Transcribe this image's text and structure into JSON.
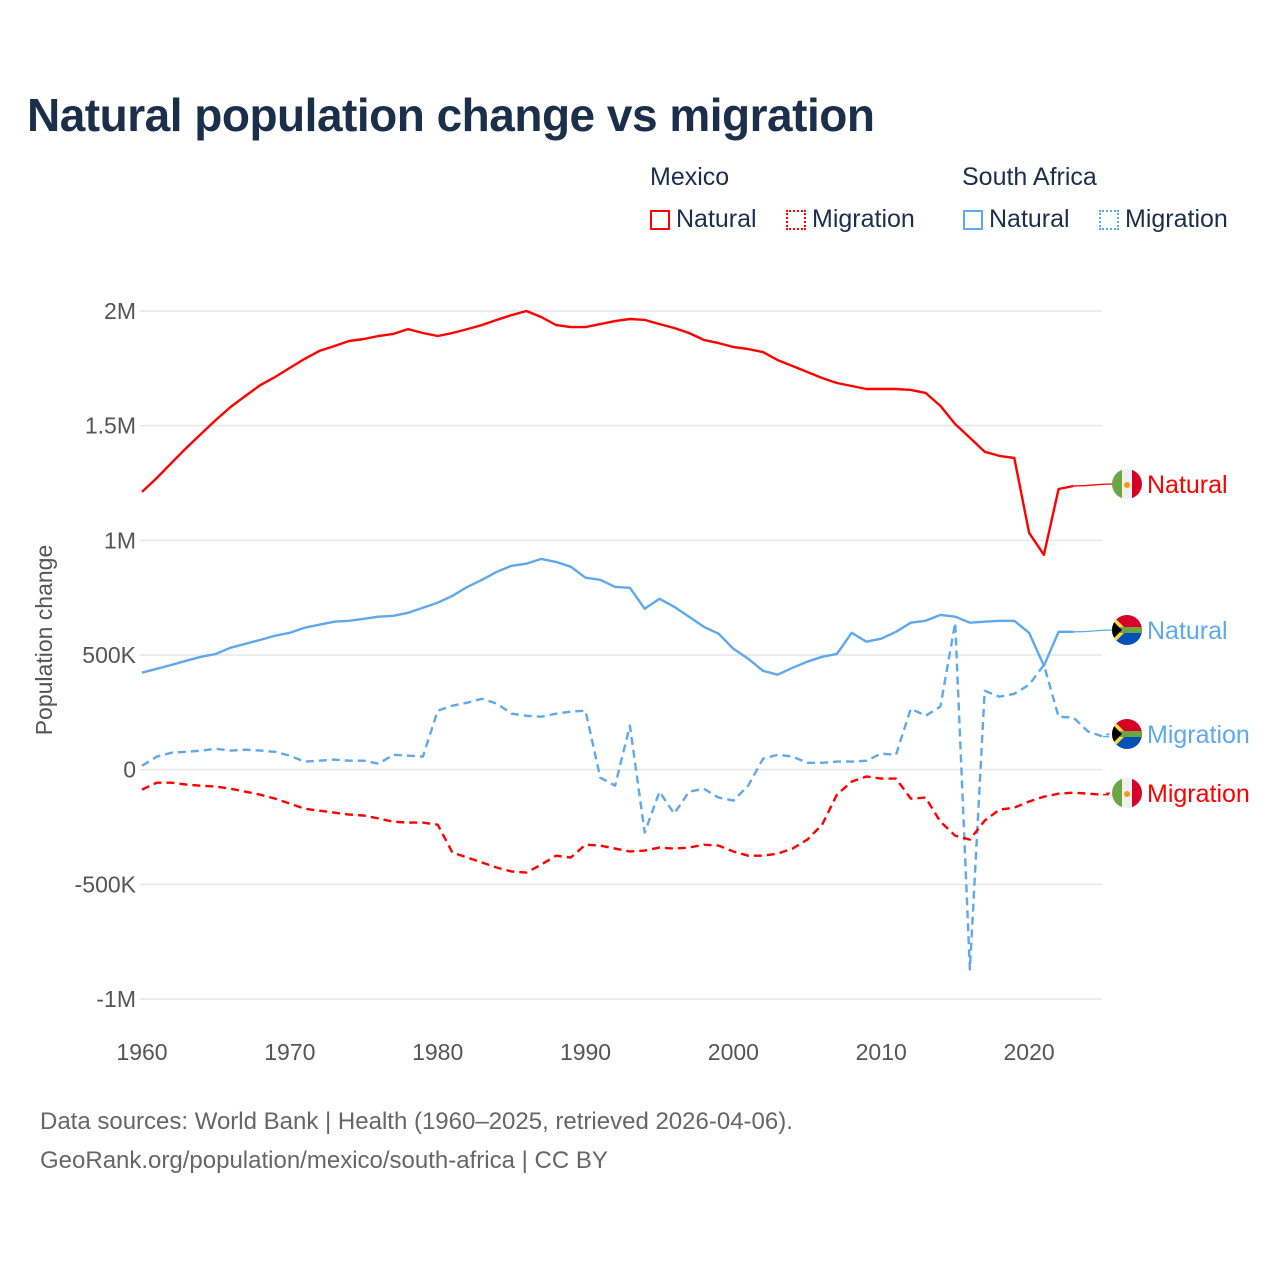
{
  "chart_data": {
    "type": "line",
    "title": "Natural population change vs migration",
    "xlabel": "",
    "ylabel": "Population change",
    "xlim": [
      1960,
      2025
    ],
    "ylim": [
      -1000000,
      2000000
    ],
    "grid": true,
    "legend_placement": "top-right",
    "x_ticks": [
      1960,
      1970,
      1980,
      1990,
      2000,
      2010,
      2020
    ],
    "x_tick_labels": [
      "1960",
      "1970",
      "1980",
      "1990",
      "2000",
      "2010",
      "2020"
    ],
    "y_ticks": [
      2000000,
      1500000,
      1000000,
      500000,
      0,
      -500000,
      -1000000
    ],
    "y_tick_labels": [
      "2M",
      "1.5M",
      "1M",
      "500K",
      "0",
      "-500K",
      "-1M"
    ],
    "legend_groups": [
      {
        "name": "Mexico",
        "items": [
          "Natural",
          "Migration"
        ]
      },
      {
        "name": "South Africa",
        "items": [
          "Natural",
          "Migration"
        ]
      }
    ],
    "series": [
      {
        "name": "Mexico Natural",
        "country": "Mexico",
        "label": "Natural",
        "color": "#ff0000",
        "dash": false,
        "start_year": 1960,
        "values": [
          1211000,
          1272000,
          1338000,
          1403000,
          1464000,
          1525000,
          1582000,
          1630000,
          1677000,
          1712000,
          1752000,
          1791000,
          1826000,
          1847000,
          1869000,
          1878000,
          1891000,
          1900000,
          1921000,
          1904000,
          1891000,
          1904000,
          1921000,
          1939000,
          1961000,
          1982000,
          2000000,
          1974000,
          1939000,
          1930000,
          1930000,
          1943000,
          1956000,
          1965000,
          1961000,
          1943000,
          1926000,
          1904000,
          1874000,
          1860000,
          1843000,
          1834000,
          1821000,
          1786000,
          1760000,
          1734000,
          1708000,
          1686000,
          1673000,
          1660000,
          1660000,
          1660000,
          1656000,
          1643000,
          1586000,
          1507000,
          1447000,
          1386000,
          1368000,
          1359000,
          1033000,
          937000,
          1224000,
          1237000
        ]
      },
      {
        "name": "South Africa Natural",
        "country": "South Africa",
        "label": "Natural",
        "color": "#5ea8ec",
        "dash": false,
        "start_year": 1960,
        "values": [
          423000,
          440000,
          457000,
          475000,
          492000,
          505000,
          532000,
          549000,
          566000,
          584000,
          597000,
          619000,
          632000,
          645000,
          649000,
          658000,
          667000,
          671000,
          684000,
          706000,
          728000,
          758000,
          797000,
          828000,
          863000,
          889000,
          898000,
          919000,
          906000,
          885000,
          837000,
          828000,
          797000,
          793000,
          702000,
          745000,
          710000,
          667000,
          623000,
          593000,
          527000,
          484000,
          431000,
          414000,
          444000,
          471000,
          492000,
          505000,
          597000,
          558000,
          571000,
          601000,
          641000,
          649000,
          675000,
          667000,
          641000,
          645000,
          649000,
          649000,
          597000,
          453000,
          601000,
          601000
        ]
      },
      {
        "name": "South Africa Migration",
        "country": "South Africa",
        "label": "Migration",
        "color": "#5ea8ec",
        "dash": true,
        "start_year": 1960,
        "values": [
          17000,
          57000,
          74000,
          78000,
          83000,
          91000,
          83000,
          87000,
          83000,
          78000,
          61000,
          35000,
          39000,
          44000,
          39000,
          39000,
          26000,
          65000,
          61000,
          57000,
          257000,
          279000,
          292000,
          309000,
          288000,
          244000,
          235000,
          231000,
          244000,
          253000,
          257000,
          -35000,
          -70000,
          192000,
          -274000,
          -96000,
          -192000,
          -96000,
          -83000,
          -122000,
          -135000,
          -70000,
          48000,
          65000,
          57000,
          30000,
          30000,
          35000,
          35000,
          39000,
          70000,
          65000,
          266000,
          235000,
          275000,
          641000,
          -871000,
          344000,
          318000,
          331000,
          370000,
          457000,
          231000,
          227000,
          166000,
          144000
        ]
      },
      {
        "name": "Mexico Migration",
        "country": "Mexico",
        "label": "Migration",
        "color": "#ff0000",
        "dash": true,
        "start_year": 1960,
        "values": [
          -87000,
          -57000,
          -57000,
          -65000,
          -70000,
          -74000,
          -83000,
          -96000,
          -109000,
          -126000,
          -148000,
          -170000,
          -179000,
          -187000,
          -196000,
          -200000,
          -213000,
          -227000,
          -231000,
          -231000,
          -240000,
          -362000,
          -383000,
          -405000,
          -427000,
          -444000,
          -449000,
          -414000,
          -375000,
          -383000,
          -327000,
          -331000,
          -344000,
          -357000,
          -353000,
          -340000,
          -344000,
          -340000,
          -327000,
          -331000,
          -357000,
          -375000,
          -375000,
          -366000,
          -344000,
          -305000,
          -240000,
          -109000,
          -52000,
          -30000,
          -39000,
          -39000,
          -126000,
          -122000,
          -227000,
          -288000,
          -305000,
          -222000,
          -174000,
          -166000,
          -139000,
          -118000,
          -105000,
          -100000,
          -105000,
          -109000
        ]
      }
    ]
  },
  "footer": {
    "line1": "Data sources: World Bank | Health (1960–2025, retrieved 2026-04-06).",
    "line2": "GeoRank.org/population/mexico/south-africa | CC BY"
  }
}
